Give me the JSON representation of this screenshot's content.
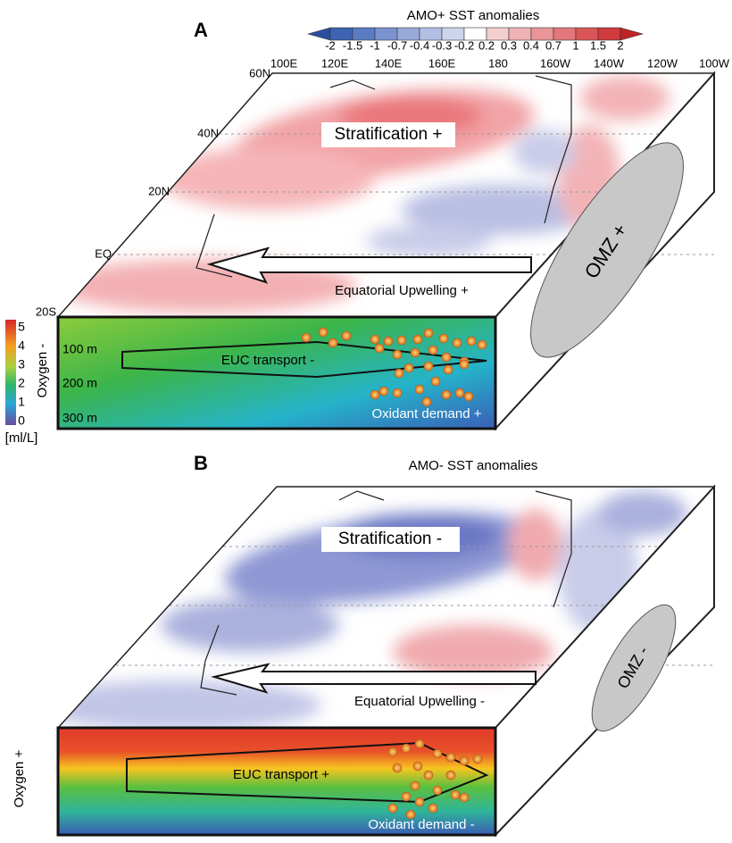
{
  "panel_a": {
    "label": "A",
    "title": "AMO+ SST anomalies",
    "colorbar_ticks": [
      "-2",
      "-1.5",
      "-1",
      "-0.7",
      "-0.4",
      "-0.3",
      "-0.2",
      "0.2",
      "0.3",
      "0.4",
      "0.7",
      "1",
      "1.5",
      "2"
    ],
    "longitudes": [
      "100E",
      "120E",
      "140E",
      "160E",
      "180",
      "160W",
      "140W",
      "120W",
      "100W"
    ],
    "latitudes": [
      "60N",
      "40N",
      "20N",
      "EQ",
      "20S"
    ],
    "stratification": "Stratification +",
    "upwelling": "Equatorial Upwelling +",
    "omz": "OMZ +",
    "euc": "EUC transport -",
    "oxidant": "Oxidant demand +",
    "depths": [
      "100 m",
      "200 m",
      "300 m"
    ],
    "oxygen_title": "Oxygen -",
    "oxygen_ticks": [
      "5",
      "4",
      "3",
      "2",
      "1",
      "0"
    ],
    "oxygen_unit": "[ml/L]"
  },
  "panel_b": {
    "label": "B",
    "title": "AMO- SST anomalies",
    "stratification": "Stratification -",
    "upwelling": "Equatorial Upwelling -",
    "omz": "OMZ -",
    "euc": "EUC transport +",
    "oxidant": "Oxidant demand -",
    "oxygen_title": "Oxygen +"
  }
}
